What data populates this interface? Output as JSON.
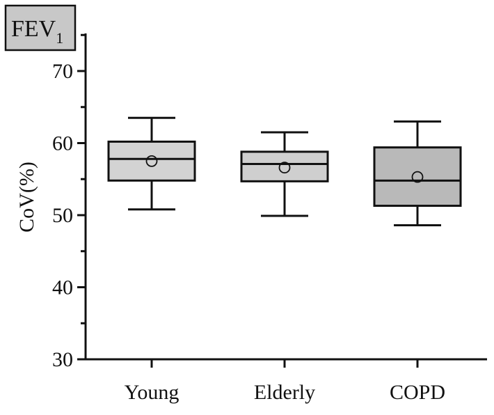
{
  "chart_data": {
    "type": "box",
    "panel_label": {
      "text": "FEV",
      "subscript": "1"
    },
    "ylabel": "CoV(%)",
    "xlabel": "",
    "ylim": [
      30,
      75
    ],
    "yticks": [
      30,
      40,
      50,
      60,
      70
    ],
    "grid": false,
    "categories": [
      "Young",
      "Elderly",
      "COPD"
    ],
    "boxes": [
      {
        "category": "Young",
        "whisker_low": 50.8,
        "q1": 54.8,
        "median": 57.8,
        "q3": 60.2,
        "whisker_high": 63.5,
        "mean": 57.5,
        "fill": "#d3d3d3"
      },
      {
        "category": "Elderly",
        "whisker_low": 49.9,
        "q1": 54.7,
        "median": 57.1,
        "q3": 58.8,
        "whisker_high": 61.5,
        "mean": 56.6,
        "fill": "#cfcfcf"
      },
      {
        "category": "COPD",
        "whisker_low": 48.6,
        "q1": 51.3,
        "median": 54.8,
        "q3": 59.4,
        "whisker_high": 63.0,
        "mean": 55.3,
        "fill": "#b9b9b9"
      }
    ]
  }
}
